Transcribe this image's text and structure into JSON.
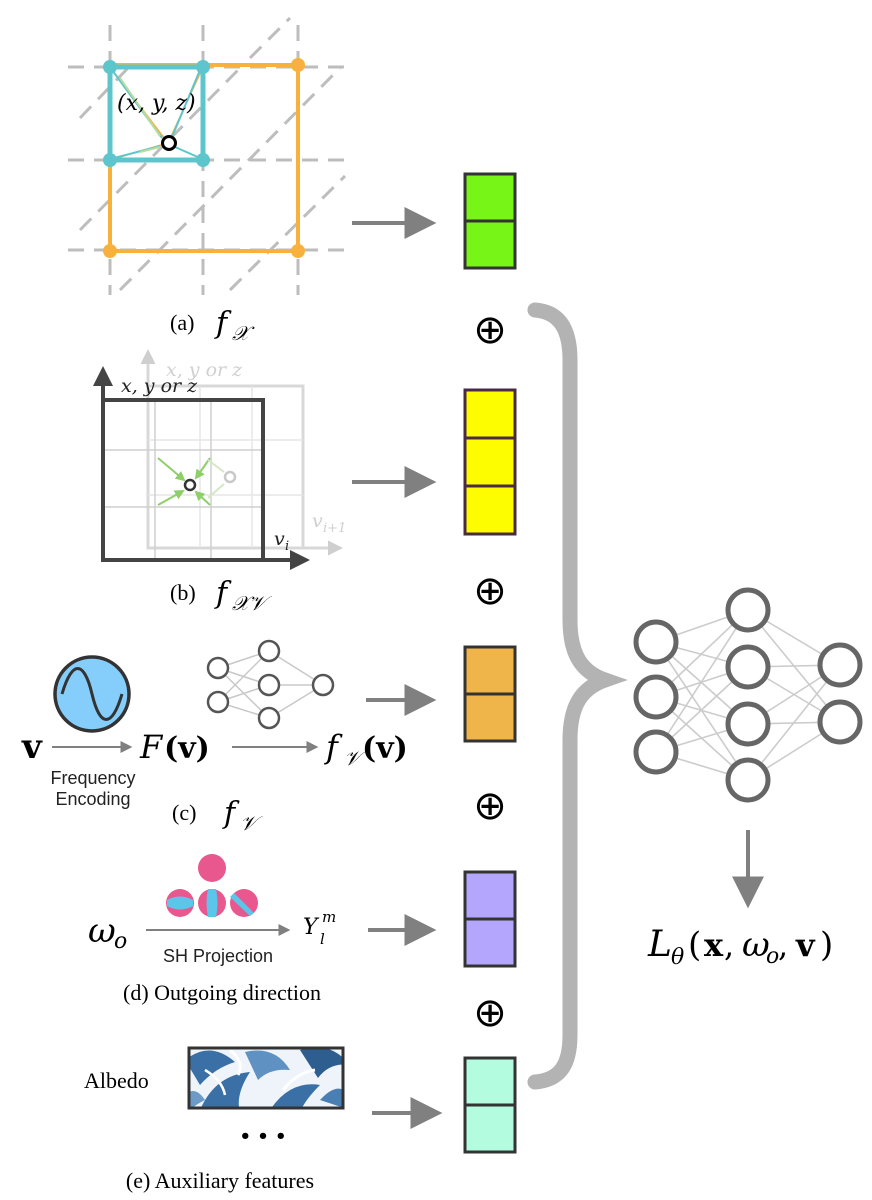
{
  "panels": {
    "a": {
      "caption": "(a)",
      "symbol_f": "f",
      "symbol_sub": "𝒳",
      "point_label": "(x, y, z)"
    },
    "b": {
      "caption": "(b)",
      "symbol_f": "f",
      "symbol_sub": "𝒳𝒱",
      "axis_front": "x, y  or  z",
      "axis_back": "x, y  or  z",
      "v_front": "v",
      "v_front_sub": "i",
      "v_back": "v",
      "v_back_sub": "i+1"
    },
    "c": {
      "caption": "(c)",
      "symbol_f": "f",
      "symbol_sub": "𝒱",
      "input": "v",
      "freq_line1": "Frequency",
      "freq_line2": "Encoding",
      "F_of_v_F": "F",
      "F_of_v_arg": "(v)",
      "fv_f": "f",
      "fv_sub": "𝒱",
      "fv_arg": "(v)"
    },
    "d": {
      "caption": "(d) Outgoing direction",
      "input": "ω",
      "input_sub": "o",
      "projection": "SH Projection",
      "output": "Y",
      "output_sup": "m",
      "output_sub": "l"
    },
    "e": {
      "caption": "(e) Auxiliary features",
      "albedo": "Albedo",
      "ellipsis": "• • •"
    }
  },
  "operators": [
    "⊕",
    "⊕",
    "⊕",
    "⊕"
  ],
  "output": {
    "L": "L",
    "L_sub": "θ",
    "args_open": "(",
    "x": "x",
    "sep1": ", ",
    "w": "ω",
    "w_sub": "o",
    "sep2": ", ",
    "v": "v",
    "args_close": ")"
  },
  "colors": {
    "green_feature": "#77f516",
    "yellow_feature": "#fdfd00",
    "orange_feature": "#f0b54a",
    "purple_feature": "#b5a6fd",
    "mint_feature": "#b3fcdf",
    "cyan_cell": "#5dc6cc",
    "orange_cell": "#f9b13d",
    "freq_circle": "#85cdfa",
    "sh_pink": "#e8588f",
    "brace_gray": "#b3b3b3",
    "arrow_gray": "#808080"
  },
  "icons": [
    "sine-wave-icon",
    "neural-network-icon",
    "sh-sphere-icon",
    "albedo-texture-icon"
  ]
}
